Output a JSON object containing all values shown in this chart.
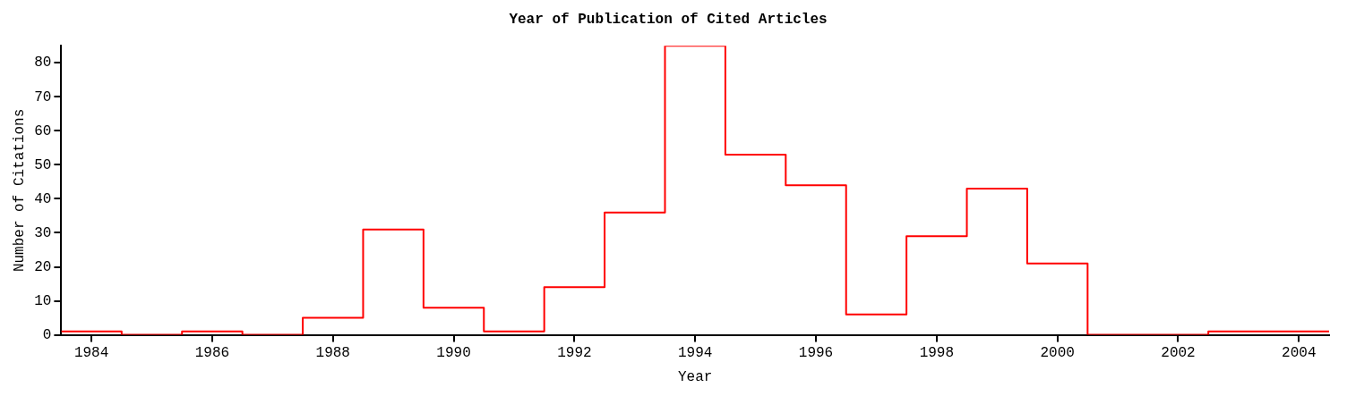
{
  "chart_data": {
    "type": "histogram",
    "title": "Year of Publication of Cited Articles",
    "xlabel": "Year",
    "ylabel": "Number of Citations",
    "bins": [
      1983.5,
      1984.5,
      1985.5,
      1986.5,
      1987.5,
      1988.5,
      1989.5,
      1990.5,
      1991.5,
      1992.5,
      1993.5,
      1994.5,
      1995.5,
      1996.5,
      1997.5,
      1998.5,
      1999.5,
      2000.5,
      2001.5,
      2002.5,
      2003.5,
      2004.5
    ],
    "values": [
      1,
      0,
      1,
      0,
      5,
      31,
      8,
      1,
      14,
      36,
      85,
      53,
      44,
      6,
      29,
      43,
      21,
      0,
      0,
      1,
      1
    ],
    "color": "#ff0000",
    "xlim": [
      1983.5,
      2004.5
    ],
    "xticks": [
      1984,
      1986,
      1988,
      1990,
      1992,
      1994,
      1996,
      1998,
      2000,
      2002,
      2004
    ],
    "ylim": [
      0,
      85
    ],
    "yticks": [
      0,
      10,
      20,
      30,
      40,
      50,
      60,
      70,
      80
    ],
    "grid": false,
    "legend": false
  }
}
